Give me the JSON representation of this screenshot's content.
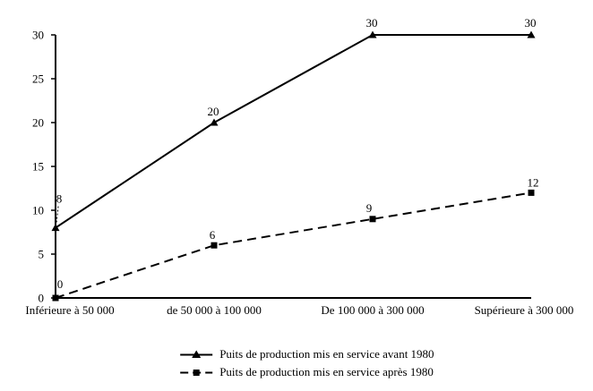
{
  "chart_data": {
    "type": "line",
    "title": "",
    "xlabel": "",
    "ylabel": "",
    "categories": [
      "Inférieure à 50 000",
      "de 50 000 à 100 000",
      "De 100 000 à 300 000",
      "Supérieure à 300 000"
    ],
    "series": [
      {
        "name": "Puits de production mis en service avant 1980",
        "values": [
          8,
          20,
          30,
          30
        ],
        "data_labels": [
          "8",
          "20",
          "30",
          "30"
        ],
        "line_style": "solid",
        "marker": "triangle"
      },
      {
        "name": "Puits de production mis en service après 1980",
        "values": [
          0,
          6,
          9,
          12
        ],
        "data_labels": [
          "0",
          "6",
          "9",
          "12"
        ],
        "line_style": "dashed",
        "marker": "square"
      }
    ],
    "ylim": [
      0,
      30
    ],
    "yticks": [
      0,
      5,
      10,
      15,
      20,
      25,
      30
    ],
    "gridlines": false,
    "legend_position": "bottom",
    "data_labels_shown": true
  },
  "colors": {
    "foreground": "#000000",
    "background": "#ffffff"
  }
}
